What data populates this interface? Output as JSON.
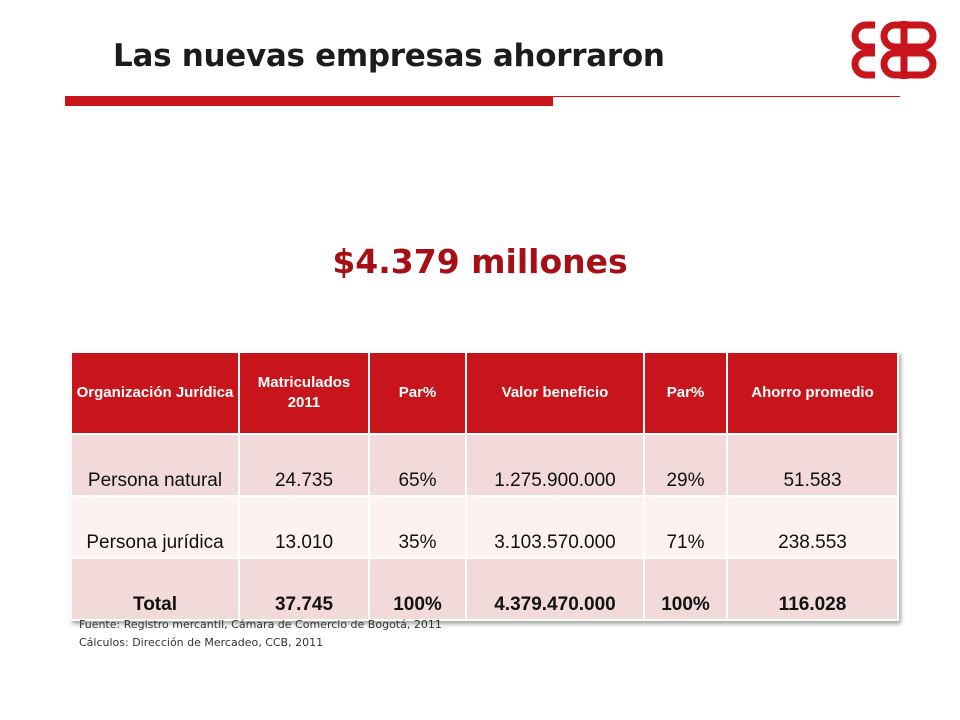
{
  "slide": {
    "title": "Las nuevas empresas ahorraron",
    "headline": "$4.379 millones",
    "colors": {
      "accent": "#c8151b",
      "headline": "#a50f15",
      "row_shade": "#f2d9da",
      "row_light": "#fdf1f1"
    },
    "logo": {
      "icon": "ccb-logo-icon"
    }
  },
  "table": {
    "headers": [
      "Organización Jurídica",
      "Matriculados 2011",
      "Par%",
      "Valor beneficio",
      "Par%",
      "Ahorro promedio"
    ],
    "rows": [
      [
        "Persona natural",
        "24.735",
        "65%",
        "1.275.900.000",
        "29%",
        "51.583"
      ],
      [
        "Persona jurídica",
        "13.010",
        "35%",
        "3.103.570.000",
        "71%",
        "238.553"
      ]
    ],
    "total": [
      "Total",
      "37.745",
      "100%",
      "4.379.470.000",
      "100%",
      "116.028"
    ]
  },
  "footnotes": {
    "source": "Fuente: Registro mercantil, Cámara de Comercio de Bogotá, 2011",
    "calc": "Cálculos: Dirección de Mercadeo, CCB, 2011"
  }
}
